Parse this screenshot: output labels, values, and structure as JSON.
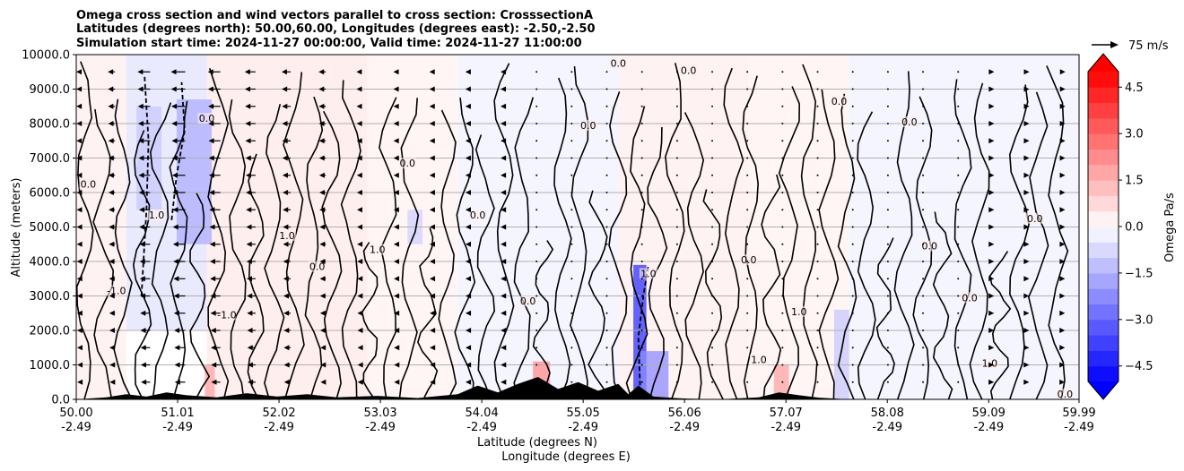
{
  "chart_data": {
    "type": "heatmap",
    "title_lines": [
      "Omega cross section and wind vectors parallel to cross section: CrosssectionA",
      "Latitudes (degrees north): 50.00,60.00, Longitudes (degrees east): -2.50,-2.50",
      "Simulation start time: 2024-11-27 00:00:00, Valid time: 2024-11-27 11:00:00"
    ],
    "xlabel_lines": [
      "Latitude (degrees N)",
      "Longitude (degrees E)"
    ],
    "ylabel": "Altitude (meters)",
    "ylim": [
      0,
      10000
    ],
    "y_ticks": [
      "0.0",
      "1000.0",
      "2000.0",
      "3000.0",
      "4000.0",
      "5000.0",
      "6000.0",
      "7000.0",
      "8000.0",
      "9000.0",
      "10000.0"
    ],
    "x_ticks": [
      {
        "lat": "50.00",
        "lon": "-2.49"
      },
      {
        "lat": "51.01",
        "lon": "-2.49"
      },
      {
        "lat": "52.02",
        "lon": "-2.49"
      },
      {
        "lat": "53.03",
        "lon": "-2.49"
      },
      {
        "lat": "54.04",
        "lon": "-2.49"
      },
      {
        "lat": "55.05",
        "lon": "-2.49"
      },
      {
        "lat": "56.06",
        "lon": "-2.49"
      },
      {
        "lat": "57.07",
        "lon": "-2.49"
      },
      {
        "lat": "58.08",
        "lon": "-2.49"
      },
      {
        "lat": "59.09",
        "lon": "-2.49"
      },
      {
        "lat": "59.99",
        "lon": "-2.49"
      }
    ],
    "grid": "horizontal",
    "colorbar": {
      "label": "Omega Pa/s",
      "range": [
        -5,
        5
      ],
      "ticks": [
        "−4.5",
        "−3.0",
        "−1.5",
        "0.0",
        "1.5",
        "3.0",
        "4.5"
      ],
      "colormap": "bwr"
    },
    "quiver_key": "75 m/s",
    "contour_labels": [
      "0.0",
      "1.0",
      "-1.0"
    ],
    "regions": [
      {
        "lat0": 50.0,
        "lat1": 50.5,
        "h0": 0,
        "h1": 10000,
        "omega": 0.4
      },
      {
        "lat0": 50.5,
        "lat1": 51.3,
        "h0": 2000,
        "h1": 10000,
        "omega": -0.6
      },
      {
        "lat0": 51.3,
        "lat1": 52.9,
        "h0": 0,
        "h1": 10000,
        "omega": 0.5
      },
      {
        "lat0": 52.9,
        "lat1": 53.8,
        "h0": 0,
        "h1": 10000,
        "omega": 0.3
      },
      {
        "lat0": 53.8,
        "lat1": 54.3,
        "h0": 0,
        "h1": 10000,
        "omega": -0.3
      },
      {
        "lat0": 54.3,
        "lat1": 55.4,
        "h0": 0,
        "h1": 10000,
        "omega": -0.3
      },
      {
        "lat0": 55.4,
        "lat1": 56.7,
        "h0": 0,
        "h1": 10000,
        "omega": 0.4
      },
      {
        "lat0": 56.7,
        "lat1": 57.7,
        "h0": 0,
        "h1": 10000,
        "omega": 0.3
      },
      {
        "lat0": 57.7,
        "lat1": 59.99,
        "h0": 0,
        "h1": 10000,
        "omega": -0.3
      },
      {
        "lat0": 51.0,
        "lat1": 51.35,
        "h0": 4500,
        "h1": 8700,
        "omega": -1.8
      },
      {
        "lat0": 50.6,
        "lat1": 50.85,
        "h0": 5500,
        "h1": 8500,
        "omega": -1.2
      },
      {
        "lat0": 53.3,
        "lat1": 53.45,
        "h0": 4500,
        "h1": 5500,
        "omega": -1.0
      },
      {
        "lat0": 55.55,
        "lat1": 55.68,
        "h0": 0,
        "h1": 3900,
        "omega": -4.5
      },
      {
        "lat0": 55.62,
        "lat1": 55.9,
        "h0": 0,
        "h1": 1400,
        "omega": -2.5
      },
      {
        "lat0": 54.55,
        "lat1": 54.72,
        "h0": 0,
        "h1": 1100,
        "omega": 2.5
      },
      {
        "lat0": 56.95,
        "lat1": 57.1,
        "h0": 0,
        "h1": 1000,
        "omega": 2.0
      },
      {
        "lat0": 51.28,
        "lat1": 51.38,
        "h0": 0,
        "h1": 1000,
        "omega": 2.0
      },
      {
        "lat0": 57.55,
        "lat1": 57.7,
        "h0": 0,
        "h1": 2600,
        "omega": -1.2
      }
    ],
    "dashed_contours": [
      {
        "lat": [
          50.65,
          50.7,
          50.72,
          50.68
        ],
        "h": [
          3000,
          5500,
          7500,
          9400
        ]
      },
      {
        "lat": [
          50.95,
          51.0,
          51.08,
          51.05
        ],
        "h": [
          5200,
          6500,
          7800,
          9200
        ]
      },
      {
        "lat": [
          55.62,
          55.6,
          55.65,
          55.7
        ],
        "h": [
          200,
          1800,
          3000,
          3900
        ]
      }
    ],
    "wind_rows_m": [
      9500,
      9000,
      8500,
      8000,
      7500,
      7000,
      6500,
      6000,
      5500,
      5000,
      4500,
      4000,
      3500,
      3000,
      2500,
      2000,
      1500,
      1000,
      500
    ],
    "wind_cols_lat": [
      50.0,
      50.35,
      50.7,
      51.05,
      51.4,
      51.75,
      52.1,
      52.45,
      52.8,
      53.15,
      53.5,
      53.85,
      54.2,
      54.55,
      54.9,
      55.25,
      55.6,
      55.95,
      56.3,
      56.65,
      57.0,
      57.35,
      57.7,
      58.05,
      58.4,
      58.75,
      59.1,
      59.45,
      59.8
    ],
    "wind_col_u": [
      -4,
      -8,
      -14,
      -16,
      -14,
      -12,
      -10,
      -8,
      -5,
      -3,
      -2,
      -1,
      -1,
      0,
      0,
      0,
      0,
      0,
      0,
      0,
      0,
      0,
      0,
      0,
      0,
      0,
      1,
      1,
      2
    ],
    "terrain": [
      {
        "lat": 50.0,
        "h": 0
      },
      {
        "lat": 50.3,
        "h": 60
      },
      {
        "lat": 50.5,
        "h": 150
      },
      {
        "lat": 50.7,
        "h": 80
      },
      {
        "lat": 50.9,
        "h": 200
      },
      {
        "lat": 51.1,
        "h": 120
      },
      {
        "lat": 51.4,
        "h": 60
      },
      {
        "lat": 51.7,
        "h": 180
      },
      {
        "lat": 52.0,
        "h": 80
      },
      {
        "lat": 52.3,
        "h": 150
      },
      {
        "lat": 52.6,
        "h": 60
      },
      {
        "lat": 53.0,
        "h": 100
      },
      {
        "lat": 53.4,
        "h": 40
      },
      {
        "lat": 53.8,
        "h": 150
      },
      {
        "lat": 54.0,
        "h": 400
      },
      {
        "lat": 54.2,
        "h": 200
      },
      {
        "lat": 54.4,
        "h": 450
      },
      {
        "lat": 54.6,
        "h": 650
      },
      {
        "lat": 54.8,
        "h": 300
      },
      {
        "lat": 55.0,
        "h": 500
      },
      {
        "lat": 55.2,
        "h": 250
      },
      {
        "lat": 55.4,
        "h": 450
      },
      {
        "lat": 55.5,
        "h": 150
      },
      {
        "lat": 55.6,
        "h": 400
      },
      {
        "lat": 55.75,
        "h": 80
      },
      {
        "lat": 56.0,
        "h": 30
      },
      {
        "lat": 56.4,
        "h": 0
      },
      {
        "lat": 56.8,
        "h": 60
      },
      {
        "lat": 57.0,
        "h": 200
      },
      {
        "lat": 57.2,
        "h": 120
      },
      {
        "lat": 57.4,
        "h": 50
      },
      {
        "lat": 57.7,
        "h": 0
      },
      {
        "lat": 59.99,
        "h": 0
      }
    ]
  }
}
